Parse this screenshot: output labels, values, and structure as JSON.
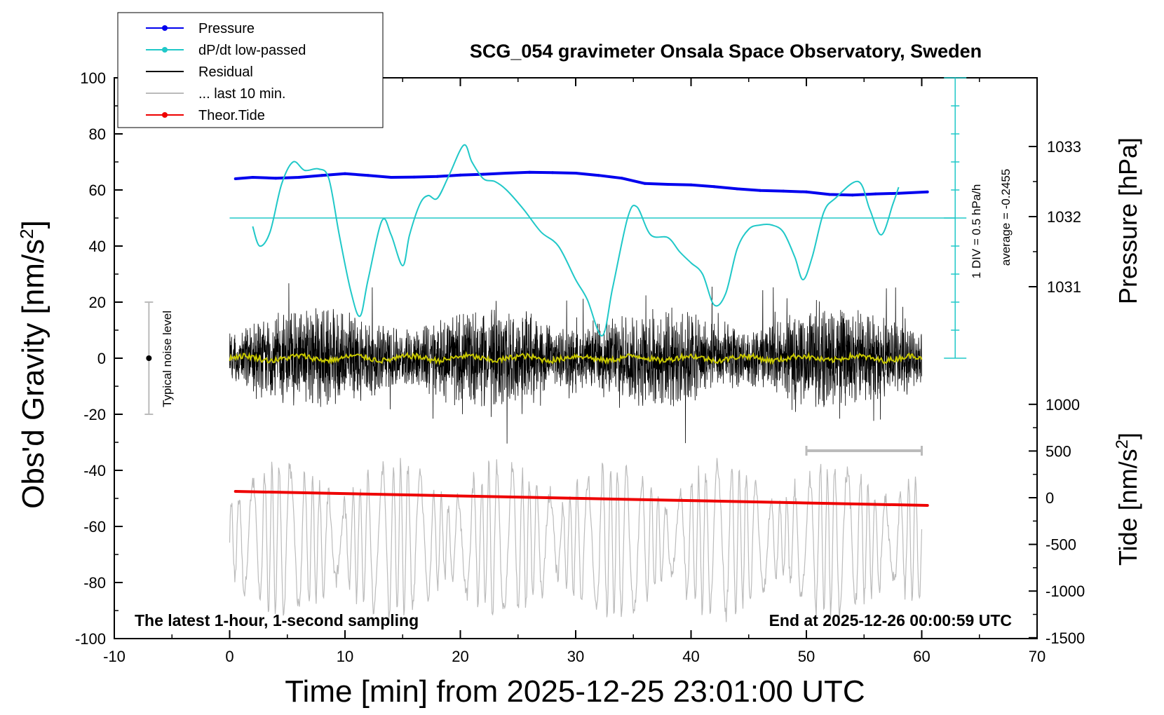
{
  "chart_data": {
    "type": "line",
    "title": "SCG_054 gravimeter Onsala Space Observatory, Sweden",
    "xlabel": "Time [min] from 2025-12-25 23:01:00 UTC",
    "ylabel_main": "Obs'd Gravity [nm/s",
    "ylabel_main_sup": "2",
    "ylabel_main_close": "]",
    "ylabel_pressure": "Pressure [hPa]",
    "ylabel_tide": "Tide [nm/s",
    "ylabel_tide_sup": "2",
    "ylabel_tide_close": "]",
    "xlim": [
      -10,
      70
    ],
    "ylim": [
      -100,
      100
    ],
    "x_ticks": [
      "-10",
      "0",
      "10",
      "20",
      "30",
      "40",
      "50",
      "60",
      "70"
    ],
    "y_ticks": [
      "100",
      "80",
      "60",
      "40",
      "20",
      "0",
      "-20",
      "-40",
      "-60",
      "-80",
      "-100"
    ],
    "pressure_ticks": [
      "1033",
      "1032",
      "1031"
    ],
    "pressure_tick_values": [
      1033,
      1032,
      1031
    ],
    "tide_ticks": [
      "1000",
      "500",
      "0",
      "-500",
      "-1000",
      "-1500"
    ],
    "tide_tick_values": [
      1000,
      500,
      0,
      -500,
      -1000,
      -1500
    ],
    "legend": [
      {
        "label": "Pressure",
        "color": "#0000ee",
        "marker": true
      },
      {
        "label": "dP/dt low-passed",
        "color": "#20c8c8",
        "marker": true
      },
      {
        "label": "Residual",
        "color": "#000000",
        "marker": false
      },
      {
        "label": "... last 10 min.",
        "color": "#bbbbbb",
        "marker": false
      },
      {
        "label": "Theor.Tide",
        "color": "#ee0000",
        "marker": true
      }
    ],
    "annotations": {
      "noise_label": "Typical noise level",
      "noise_range": [
        -20,
        20
      ],
      "dpdt_scale": "1 DIV = 0.5 hPa/h",
      "dpdt_average": "average = -0.2455",
      "bottom_left": "The latest 1-hour, 1-second sampling",
      "bottom_right": "End at 2025-12-26 00:00:59 UTC"
    },
    "series": [
      {
        "name": "Pressure",
        "color": "#0000ee",
        "x": [
          0.5,
          2,
          4,
          6,
          8,
          10,
          12,
          14,
          16,
          18,
          20,
          22,
          24,
          26,
          28,
          30,
          32,
          34,
          36,
          38,
          40,
          42,
          44,
          46,
          48,
          50,
          52,
          54,
          56,
          58,
          60.5
        ],
        "values": [
          64,
          64.5,
          64.2,
          64.5,
          65.2,
          65.8,
          65.2,
          64.5,
          64.6,
          64.8,
          65.3,
          65.6,
          66,
          66.3,
          66.2,
          66,
          65.2,
          64.2,
          62.3,
          62,
          61.8,
          61.2,
          60.4,
          59.8,
          59.6,
          59.3,
          58.4,
          58.2,
          58.6,
          58.8,
          59.3
        ]
      },
      {
        "name": "dP/dt low-passed",
        "color": "#20c8c8",
        "x": [
          2,
          2.6,
          3.5,
          4.5,
          5.5,
          6.5,
          7.7,
          8.6,
          9.5,
          10.5,
          11.3,
          12,
          13.2,
          14,
          15,
          15.6,
          16.5,
          17.2,
          18,
          19,
          20.3,
          21,
          22,
          23,
          24,
          25.5,
          27,
          28.5,
          30,
          31,
          32.3,
          33.2,
          34.5,
          35.3,
          36.5,
          38,
          39,
          40,
          41,
          42,
          43,
          44,
          45,
          46,
          47,
          48,
          49,
          49.7,
          50.5,
          51.5,
          52.5,
          54.5,
          55.5,
          56.5,
          57.5,
          58
        ],
        "values": [
          47,
          40,
          45,
          62,
          70,
          67,
          67.5,
          64,
          44,
          24,
          15,
          28,
          49,
          44,
          33,
          44,
          55,
          58,
          57,
          65,
          76,
          70,
          64,
          63,
          60,
          53,
          45,
          40,
          28,
          21,
          8,
          25,
          50,
          54,
          44,
          43,
          38,
          34,
          30,
          19,
          23,
          39,
          46,
          47.5,
          47.5,
          45,
          36,
          28,
          36,
          52,
          57,
          63,
          53,
          44,
          55,
          61
        ]
      },
      {
        "name": "Theor.Tide",
        "color": "#ee0000",
        "x": [
          0.5,
          60.5
        ],
        "values": [
          -47.5,
          -52.5
        ]
      }
    ]
  }
}
